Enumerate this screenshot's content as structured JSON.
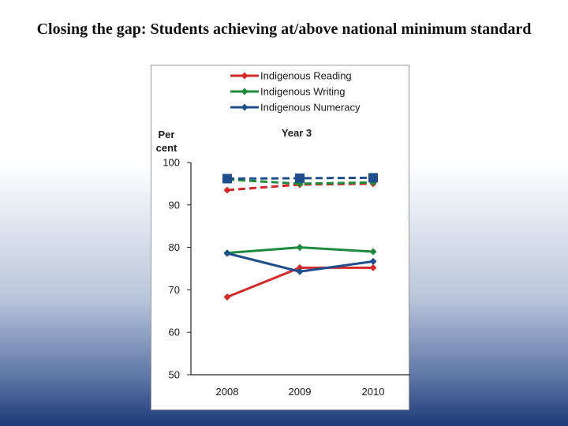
{
  "page": {
    "title": "Closing the gap: Students achieving at/above national minimum standard"
  },
  "chart_data": {
    "type": "line",
    "title": "Year 3",
    "ylabel_lines": [
      "Per",
      "cent"
    ],
    "ylim": [
      50,
      100
    ],
    "yticks": [
      50,
      60,
      70,
      80,
      90,
      100
    ],
    "categories": [
      "2008",
      "2009",
      "2010"
    ],
    "legend_position": "top",
    "grid": false,
    "series": [
      {
        "name": "Indigenous Reading",
        "color": "#d42a2a",
        "values": [
          68.3,
          75.2,
          75.2
        ],
        "style": "solid",
        "marker": "diamond"
      },
      {
        "name": "Indigenous Writing",
        "color": "#1e8a3e",
        "values": [
          78.7,
          80.0,
          79.0
        ],
        "style": "solid",
        "marker": "diamond"
      },
      {
        "name": "Indigenous Numeracy",
        "color": "#1f4e8c",
        "values": [
          78.6,
          74.3,
          76.7
        ],
        "style": "solid",
        "marker": "diamond"
      },
      {
        "name": "",
        "color": "#d42a2a",
        "values": [
          93.5,
          94.8,
          95.0
        ],
        "style": "dashed",
        "marker": "diamond"
      },
      {
        "name": "",
        "color": "#1e8a3e",
        "values": [
          96.0,
          95.0,
          95.3
        ],
        "style": "dashed",
        "marker": "diamond"
      },
      {
        "name": "",
        "color": "#1f4e8c",
        "values": [
          96.2,
          96.3,
          96.4
        ],
        "style": "dashed",
        "marker": "square"
      }
    ]
  }
}
